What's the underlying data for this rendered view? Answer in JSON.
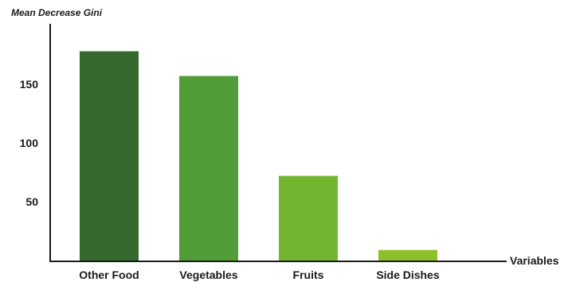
{
  "chart_data": {
    "type": "bar",
    "ylabel": "Mean Decrease Gini",
    "xlabel": "Variables",
    "categories": [
      "Other Food",
      "Vegetables",
      "Fruits",
      "Side Dishes"
    ],
    "values": [
      178,
      157,
      72,
      9
    ],
    "colors": [
      "#35692e",
      "#519d38",
      "#72b52e",
      "#8dbf2a"
    ],
    "yticks": [
      50,
      100,
      150
    ],
    "ylim": [
      0,
      190
    ],
    "grid": false,
    "legend": "none",
    "axis_color": "#1a1a1a"
  }
}
